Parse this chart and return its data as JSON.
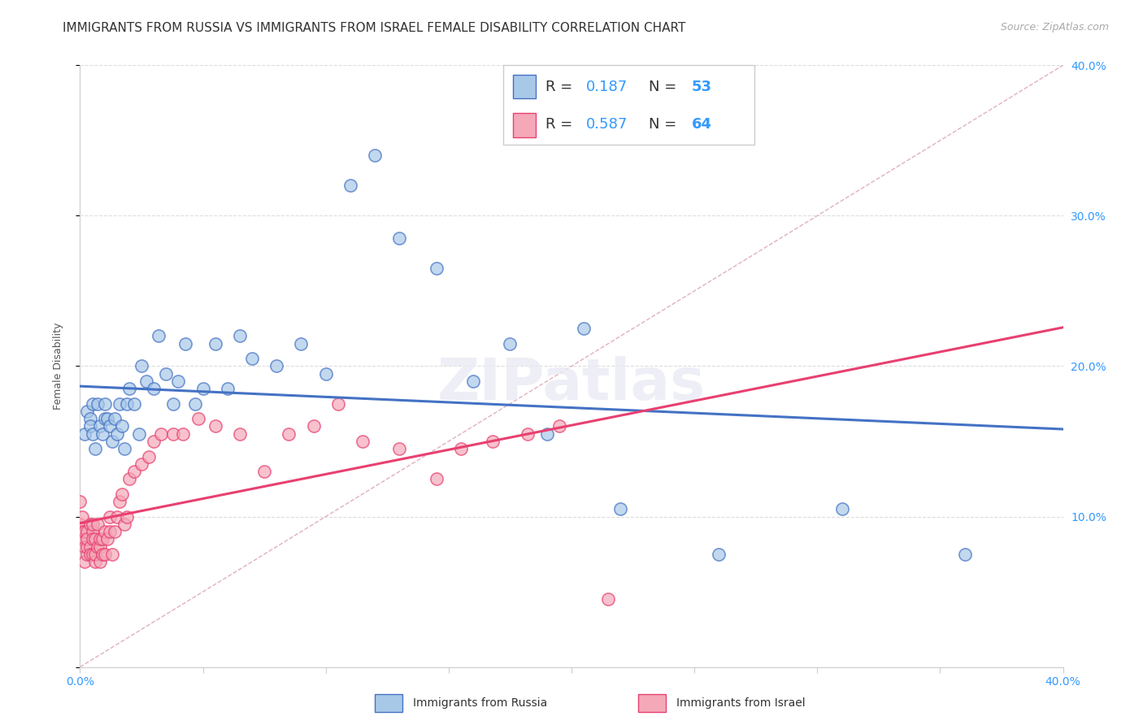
{
  "title": "IMMIGRANTS FROM RUSSIA VS IMMIGRANTS FROM ISRAEL FEMALE DISABILITY CORRELATION CHART",
  "source": "Source: ZipAtlas.com",
  "ylabel": "Female Disability",
  "x_min": 0.0,
  "x_max": 0.4,
  "y_min": 0.0,
  "y_max": 0.4,
  "russia_color": "#a8c8e8",
  "russia_color_line": "#4472c4",
  "israel_color": "#f4a8b8",
  "israel_color_line": "#e84070",
  "russia_R": 0.187,
  "russia_N": 53,
  "israel_R": 0.587,
  "israel_N": 64,
  "russia_x": [
    0.002,
    0.003,
    0.004,
    0.004,
    0.005,
    0.005,
    0.006,
    0.007,
    0.008,
    0.009,
    0.01,
    0.01,
    0.011,
    0.012,
    0.013,
    0.014,
    0.015,
    0.016,
    0.017,
    0.018,
    0.019,
    0.02,
    0.022,
    0.024,
    0.025,
    0.027,
    0.03,
    0.032,
    0.035,
    0.038,
    0.04,
    0.043,
    0.047,
    0.05,
    0.055,
    0.06,
    0.065,
    0.07,
    0.08,
    0.09,
    0.1,
    0.11,
    0.12,
    0.13,
    0.145,
    0.16,
    0.175,
    0.19,
    0.205,
    0.22,
    0.26,
    0.31,
    0.36
  ],
  "russia_y": [
    0.155,
    0.17,
    0.165,
    0.16,
    0.175,
    0.155,
    0.145,
    0.175,
    0.16,
    0.155,
    0.165,
    0.175,
    0.165,
    0.16,
    0.15,
    0.165,
    0.155,
    0.175,
    0.16,
    0.145,
    0.175,
    0.185,
    0.175,
    0.155,
    0.2,
    0.19,
    0.185,
    0.22,
    0.195,
    0.175,
    0.19,
    0.215,
    0.175,
    0.185,
    0.215,
    0.185,
    0.22,
    0.205,
    0.2,
    0.215,
    0.195,
    0.32,
    0.34,
    0.285,
    0.265,
    0.19,
    0.215,
    0.155,
    0.225,
    0.105,
    0.075,
    0.105,
    0.075
  ],
  "israel_x": [
    0.0,
    0.0,
    0.001,
    0.001,
    0.001,
    0.002,
    0.002,
    0.002,
    0.003,
    0.003,
    0.003,
    0.003,
    0.004,
    0.004,
    0.004,
    0.005,
    0.005,
    0.005,
    0.005,
    0.006,
    0.006,
    0.006,
    0.007,
    0.007,
    0.008,
    0.008,
    0.008,
    0.009,
    0.009,
    0.01,
    0.01,
    0.011,
    0.012,
    0.012,
    0.013,
    0.014,
    0.015,
    0.016,
    0.017,
    0.018,
    0.019,
    0.02,
    0.022,
    0.025,
    0.028,
    0.03,
    0.033,
    0.038,
    0.042,
    0.048,
    0.055,
    0.065,
    0.075,
    0.085,
    0.095,
    0.105,
    0.115,
    0.13,
    0.145,
    0.155,
    0.168,
    0.182,
    0.195,
    0.215
  ],
  "israel_y": [
    0.11,
    0.095,
    0.09,
    0.1,
    0.085,
    0.07,
    0.08,
    0.09,
    0.075,
    0.08,
    0.09,
    0.085,
    0.095,
    0.08,
    0.075,
    0.09,
    0.085,
    0.075,
    0.095,
    0.07,
    0.075,
    0.085,
    0.08,
    0.095,
    0.08,
    0.07,
    0.085,
    0.075,
    0.085,
    0.09,
    0.075,
    0.085,
    0.09,
    0.1,
    0.075,
    0.09,
    0.1,
    0.11,
    0.115,
    0.095,
    0.1,
    0.125,
    0.13,
    0.135,
    0.14,
    0.15,
    0.155,
    0.155,
    0.155,
    0.165,
    0.16,
    0.155,
    0.13,
    0.155,
    0.16,
    0.175,
    0.15,
    0.145,
    0.125,
    0.145,
    0.15,
    0.155,
    0.16,
    0.045
  ],
  "background_color": "#ffffff",
  "grid_color": "#dddddd",
  "title_fontsize": 11,
  "source_fontsize": 9,
  "axis_label_fontsize": 9,
  "tick_fontsize": 10,
  "legend_fontsize": 13,
  "accent_color": "#3399ff"
}
